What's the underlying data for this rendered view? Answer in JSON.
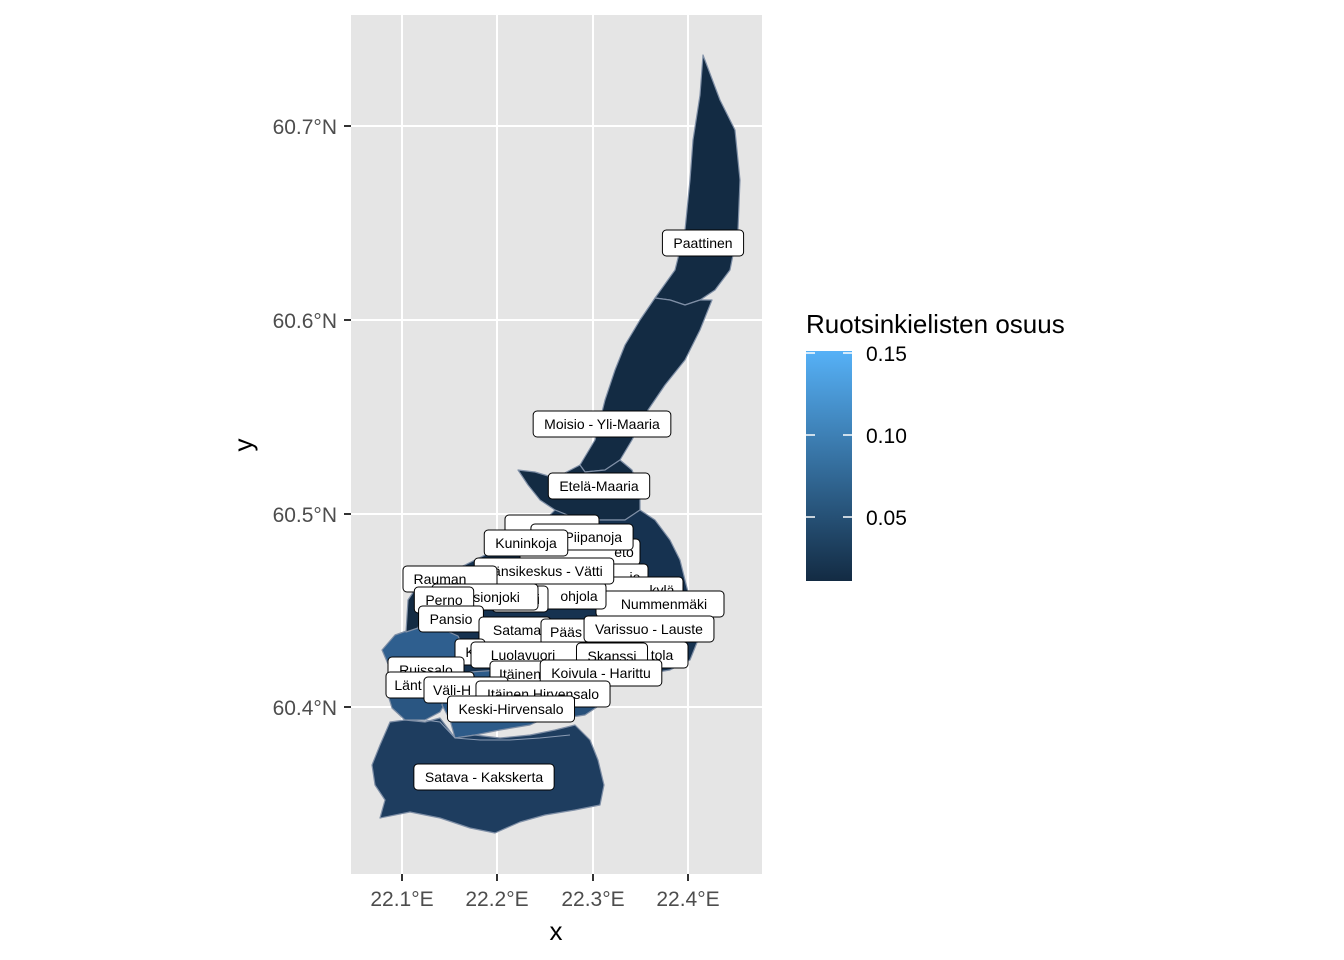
{
  "chart_data": {
    "type": "map",
    "xlabel": "x",
    "ylabel": "y",
    "x_ticks": [
      "22.1°E",
      "22.2°E",
      "22.3°E",
      "22.4°E"
    ],
    "y_ticks": [
      "60.4°N",
      "60.5°N",
      "60.6°N",
      "60.7°N"
    ],
    "legend": {
      "title": "Ruotsinkielisten osuus",
      "labels": [
        "0.15",
        "0.10",
        "0.05"
      ],
      "color_low": "#132b43",
      "color_high": "#56b1f7"
    },
    "regions": [
      {
        "name": "Paattinen",
        "value": 0.01
      },
      {
        "name": "Moisio - Yli-Maaria",
        "value": 0.01
      },
      {
        "name": "Etelä-Maaria",
        "value": 0.02
      },
      {
        "name": "Satava - Kakskerta",
        "value": 0.06
      },
      {
        "name": "Keski-Hirvensalo",
        "value": 0.09
      },
      {
        "name": "Itäinen Hirvensalo",
        "value": 0.08
      },
      {
        "name": "Koivula - Harittu",
        "value": 0.04
      },
      {
        "name": "Skanssi",
        "value": 0.04
      },
      {
        "name": "Varissuo - Lauste",
        "value": 0.03
      },
      {
        "name": "Pansio",
        "value": 0.03
      },
      {
        "name": "Perno",
        "value": 0.03
      },
      {
        "name": "Kuninkoja",
        "value": 0.02
      },
      {
        "name": "Länsikeskus - Vätti",
        "value": 0.04
      },
      {
        "name": "Ruissalo",
        "value": 0.14
      },
      {
        "name": "Luolavuori",
        "value": 0.06
      }
    ]
  },
  "map_labels": {
    "paattinen": "Paattinen",
    "moisio": "Moisio - Yli-Maaria",
    "etela_maaria": "Etelä-Maaria",
    "piipanoja": "ki - Piipanoja",
    "kuninkoja": "Kuninkoja",
    "lansikeskus": "Länsikeskus - Vätti",
    "rauman": "Rauman",
    "perno": "Perno",
    "raisionjoki": "isionjoki",
    "pansio": "Pansio",
    "nummenmaki": "Nummenmäki",
    "varissuo": "Varissuo - Lauste",
    "skanssi": "Skanssi",
    "luolavuori": "Luolavuori",
    "itainen": "Itäinen",
    "koivula": "Koivula - Harittu",
    "itainen_hirvensalo": "Itäinen Hirvensalo",
    "keski_hirvensalo": "Keski-Hirvensalo",
    "ruissalo": "Ruissalo",
    "lant": "Länt",
    "vali": "Väli-H",
    "satava": "Satava - Kakskerta",
    "satama": "Satama",
    "paas": "Pääs",
    "kylä": "kylä",
    "tola": "tola",
    "eto": "eto",
    "ie": "ie",
    "ri": "ri",
    "ohjola": "ohjola",
    "k_small": "K"
  }
}
